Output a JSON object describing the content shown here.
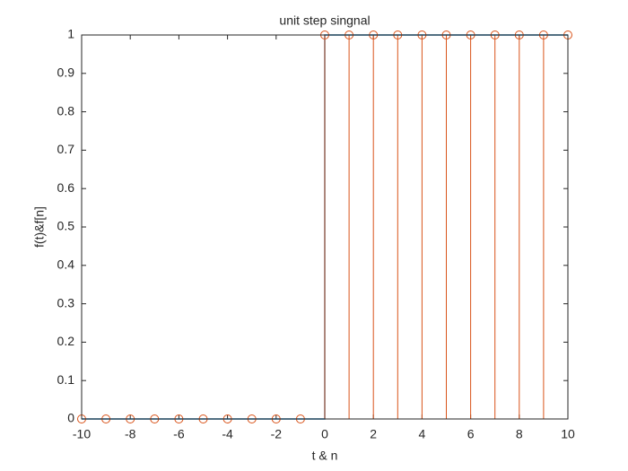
{
  "chart_data": {
    "type": "line",
    "title": "unit step singnal",
    "x_label": "t & n",
    "y_label": "f(t)&f[n]",
    "series": [
      {
        "style": "line",
        "color": "#0072bd",
        "x": [
          -10,
          0,
          0,
          10
        ],
        "values": [
          0,
          0,
          1,
          1
        ]
      },
      {
        "style": "stem",
        "color": "#d95319",
        "x": [
          -10,
          -9,
          -8,
          -7,
          -6,
          -5,
          -4,
          -3,
          -2,
          -1,
          0,
          1,
          2,
          3,
          4,
          5,
          6,
          7,
          8,
          9,
          10
        ],
        "values": [
          0,
          0,
          0,
          0,
          0,
          0,
          0,
          0,
          0,
          0,
          1,
          1,
          1,
          1,
          1,
          1,
          1,
          1,
          1,
          1,
          1
        ]
      }
    ],
    "xlim": [
      -10,
      10
    ],
    "xticks": [
      -10,
      -8,
      -6,
      -4,
      -2,
      0,
      2,
      4,
      6,
      8,
      10
    ],
    "ylim": [
      0,
      1
    ],
    "yticks": [
      0,
      0.1,
      0.2,
      0.3,
      0.4,
      0.5,
      0.6,
      0.7,
      0.8,
      0.9,
      1
    ],
    "grid": false,
    "box": true
  }
}
